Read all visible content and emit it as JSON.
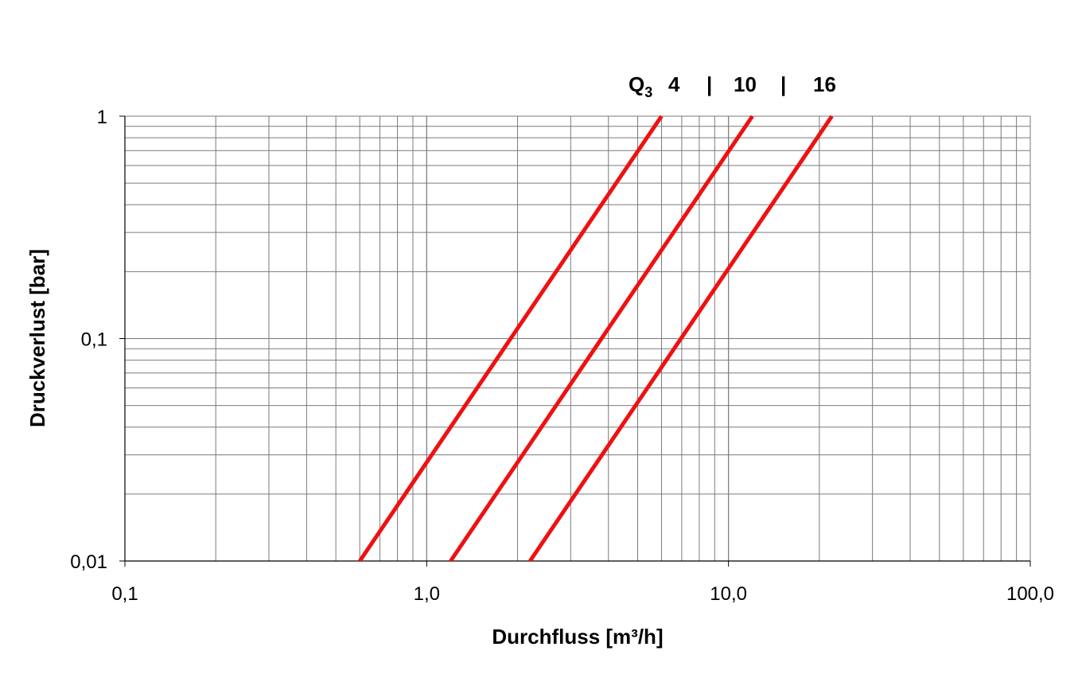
{
  "chart_data": {
    "type": "line",
    "x_scale": "log",
    "y_scale": "log",
    "xlim": [
      0.1,
      100.0
    ],
    "ylim": [
      0.01,
      1
    ],
    "xlabel": "Durchfluss [m³/h]",
    "ylabel": "Druckverlust [bar]",
    "x_ticks": [
      "0,1",
      "1,0",
      "10,0",
      "100,0"
    ],
    "y_ticks": [
      "0,01",
      "0,1",
      "1"
    ],
    "grid": true,
    "legend": {
      "position": "top",
      "prefix": "Q",
      "prefix_subscript": "3",
      "labels": [
        "4",
        "10",
        "16"
      ],
      "separator": "|"
    },
    "line_color": "#ee1111",
    "series": [
      {
        "name": "4",
        "x": [
          0.6,
          6.0
        ],
        "y": [
          0.01,
          1
        ]
      },
      {
        "name": "10",
        "x": [
          1.2,
          12.0
        ],
        "y": [
          0.01,
          1
        ]
      },
      {
        "name": "16",
        "x": [
          2.2,
          22.0
        ],
        "y": [
          0.01,
          1
        ]
      }
    ]
  }
}
